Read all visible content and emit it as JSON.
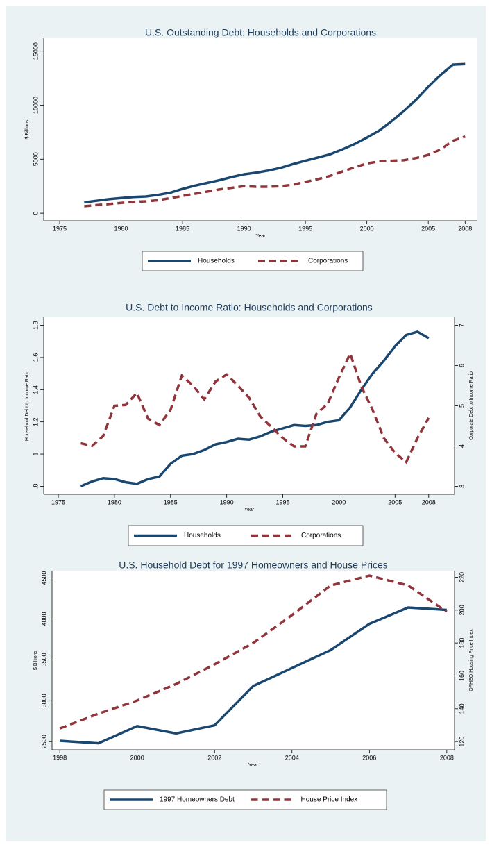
{
  "chart_data": [
    {
      "type": "line",
      "title": "U.S. Outstanding Debt: Households and Corporations",
      "x_label": "Year",
      "y_label": "$ Billions",
      "x": [
        1977,
        1978,
        1979,
        1980,
        1981,
        1982,
        1983,
        1984,
        1985,
        1986,
        1987,
        1988,
        1989,
        1990,
        1991,
        1992,
        1993,
        1994,
        1995,
        1996,
        1997,
        1998,
        1999,
        2000,
        2001,
        2002,
        2003,
        2004,
        2005,
        2006,
        2007,
        2008
      ],
      "series": [
        {
          "name": "Households",
          "color": "#1a476f",
          "line_style": "solid",
          "values": [
            1000,
            1150,
            1300,
            1400,
            1500,
            1550,
            1700,
            1900,
            2250,
            2550,
            2800,
            3050,
            3350,
            3600,
            3750,
            3950,
            4200,
            4550,
            4850,
            5150,
            5450,
            5900,
            6400,
            7000,
            7650,
            8500,
            9450,
            10500,
            11700,
            12800,
            13750,
            13800
          ]
        },
        {
          "name": "Corporations",
          "color": "#90353b",
          "line_style": "dash",
          "values": [
            650,
            750,
            850,
            950,
            1050,
            1100,
            1200,
            1400,
            1600,
            1800,
            2000,
            2200,
            2350,
            2500,
            2450,
            2450,
            2500,
            2650,
            2900,
            3150,
            3450,
            3850,
            4250,
            4600,
            4800,
            4850,
            4900,
            5100,
            5400,
            5900,
            6700,
            7100
          ]
        }
      ],
      "xlim": [
        1973.7,
        2009
      ],
      "xticks": [
        1975,
        1980,
        1985,
        1990,
        1995,
        2000,
        2005,
        2008
      ],
      "ylim": [
        -700,
        16200
      ],
      "yticks": [
        0,
        5000,
        10000,
        15000
      ],
      "grid": false
    },
    {
      "type": "line",
      "title": "U.S. Debt to Income Ratio: Households and Corporations",
      "x_label": "Year",
      "y_label": "Household Debt to Income Ratio",
      "y2_label": "Corporate Debt to Income Ratio",
      "x": [
        1977,
        1978,
        1979,
        1980,
        1981,
        1982,
        1983,
        1984,
        1985,
        1986,
        1987,
        1988,
        1989,
        1990,
        1991,
        1992,
        1993,
        1994,
        1995,
        1996,
        1997,
        1998,
        1999,
        2000,
        2001,
        2002,
        2003,
        2004,
        2005,
        2006,
        2007,
        2008
      ],
      "series": [
        {
          "name": "Households",
          "color": "#1a476f",
          "line_style": "solid",
          "values": [
            0.8,
            0.83,
            0.85,
            0.845,
            0.825,
            0.815,
            0.845,
            0.86,
            0.94,
            0.99,
            1.0,
            1.025,
            1.06,
            1.075,
            1.095,
            1.09,
            1.11,
            1.14,
            1.16,
            1.18,
            1.175,
            1.18,
            1.2,
            1.21,
            1.29,
            1.4,
            1.5,
            1.58,
            1.67,
            1.74,
            1.76,
            1.72
          ]
        },
        {
          "name": "Corporations",
          "color": "#90353b",
          "line_style": "dash",
          "axis": "y2",
          "values": [
            4.07,
            4.0,
            4.25,
            5.0,
            5.02,
            5.32,
            4.68,
            4.52,
            4.9,
            5.75,
            5.5,
            5.16,
            5.6,
            5.78,
            5.5,
            5.2,
            4.73,
            4.47,
            4.2,
            3.99,
            3.99,
            4.8,
            5.05,
            5.7,
            6.3,
            5.48,
            4.9,
            4.2,
            3.83,
            3.6,
            4.2,
            4.7
          ]
        }
      ],
      "xlim": [
        1973.7,
        2010.3
      ],
      "xticks": [
        1975,
        1980,
        1985,
        1990,
        1995,
        2000,
        2005,
        2008
      ],
      "ylim": [
        0.75,
        1.85
      ],
      "yticks": [
        {
          "value": 0.8,
          "label": ".8"
        },
        1,
        1.2,
        1.4,
        1.6,
        1.8
      ],
      "y2lim": [
        2.8,
        7.2
      ],
      "y2ticks": [
        3,
        4,
        5,
        6,
        7
      ],
      "grid": false
    },
    {
      "type": "line",
      "title": "U.S. Household Debt for 1997 Homeowners and House Prices",
      "x_label": "Year",
      "y_label": "$ Billions",
      "y2_label": "OFHEO Housing Price Index",
      "x": [
        1998,
        1999,
        2000,
        2001,
        2002,
        2003,
        2004,
        2005,
        2006,
        2007,
        2008
      ],
      "series": [
        {
          "name": "1997 Homeowners Debt",
          "color": "#1a476f",
          "line_style": "solid",
          "values": [
            2510,
            2480,
            2690,
            2600,
            2700,
            3180,
            3400,
            3620,
            3940,
            4140,
            4110
          ]
        },
        {
          "name": "House Price Index",
          "color": "#90353b",
          "line_style": "dash",
          "axis": "y2",
          "values": [
            128,
            137,
            145,
            155,
            167,
            180,
            197,
            215,
            221,
            215,
            199
          ]
        }
      ],
      "xlim": [
        1997.8,
        2008.2
      ],
      "xticks": [
        1998,
        2000,
        2002,
        2004,
        2006,
        2008
      ],
      "ylim": [
        2400,
        4590
      ],
      "yticks": [
        2500,
        3000,
        3500,
        4000,
        4500
      ],
      "y2lim": [
        115,
        224
      ],
      "y2ticks": [
        120,
        140,
        160,
        180,
        200,
        220
      ],
      "grid": false
    }
  ]
}
